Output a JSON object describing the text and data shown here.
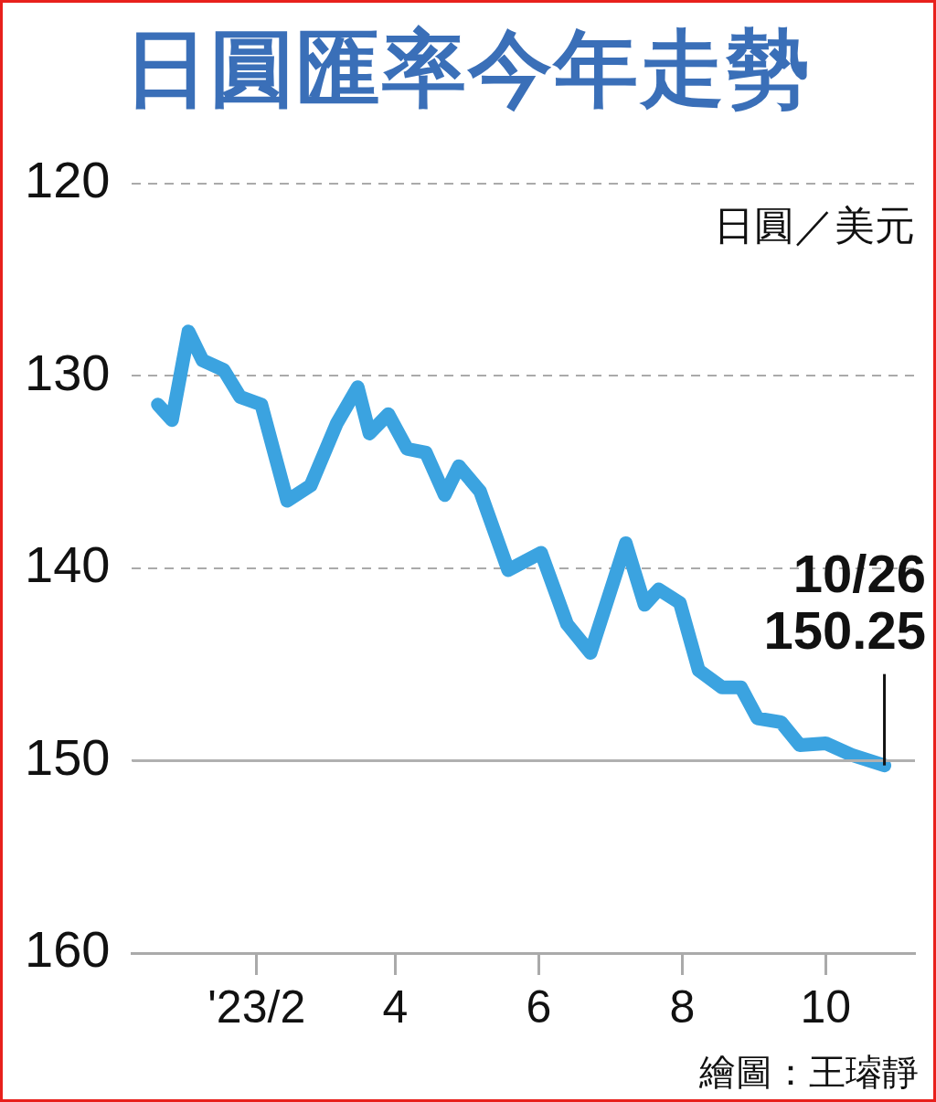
{
  "chart_data": {
    "type": "line",
    "title": "日圓匯率今年走勢",
    "ylabel": "日圓／美元",
    "x": [
      "2022-12-21",
      "2022-12-27",
      "2023-01-03",
      "2023-01-09",
      "2023-01-18",
      "2023-01-25",
      "2023-02-03",
      "2023-02-14",
      "2023-02-24",
      "2023-03-07",
      "2023-03-16",
      "2023-03-21",
      "2023-03-29",
      "2023-04-06",
      "2023-04-14",
      "2023-04-22",
      "2023-04-28",
      "2023-05-07",
      "2023-05-19",
      "2023-06-02",
      "2023-06-13",
      "2023-06-23",
      "2023-07-08",
      "2023-07-16",
      "2023-07-22",
      "2023-07-31",
      "2023-08-08",
      "2023-08-18",
      "2023-08-26",
      "2023-09-02",
      "2023-09-12",
      "2023-09-20",
      "2023-10-01",
      "2023-10-12",
      "2023-10-26"
    ],
    "series": [
      {
        "color": "#3ba3e0",
        "values": [
          131.5,
          132.3,
          127.7,
          129.2,
          129.7,
          131.1,
          131.5,
          136.5,
          135.7,
          132.5,
          130.6,
          133.0,
          132.0,
          133.8,
          134.0,
          136.2,
          134.7,
          136.0,
          140.1,
          139.2,
          142.9,
          144.4,
          138.7,
          141.9,
          141.1,
          141.8,
          145.3,
          146.2,
          146.2,
          147.8,
          148.0,
          149.2,
          149.1,
          149.7,
          150.25
        ]
      }
    ],
    "xlim": [
      "2022-12-10",
      "2023-11-08"
    ],
    "xticks": [
      {
        "value": "2023-02-01",
        "label": "'23/2"
      },
      {
        "value": "2023-04-01",
        "label": "4"
      },
      {
        "value": "2023-06-01",
        "label": "6"
      },
      {
        "value": "2023-08-01",
        "label": "8"
      },
      {
        "value": "2023-10-01",
        "label": "10"
      }
    ],
    "ylim": [
      160,
      120
    ],
    "yticks": [
      120,
      130,
      140,
      150,
      160
    ],
    "grid": "y",
    "legend": false,
    "marker": "none",
    "line_style": "solid",
    "ref_lines": [
      {
        "axis": "y",
        "value": 150,
        "color": "#b0b0b0",
        "line_style": "solid"
      }
    ],
    "annotations": [
      {
        "text": "10/26\n150.25",
        "x": "2023-10-26",
        "y": 150.25
      },
      "繪圖：王璿靜"
    ]
  }
}
